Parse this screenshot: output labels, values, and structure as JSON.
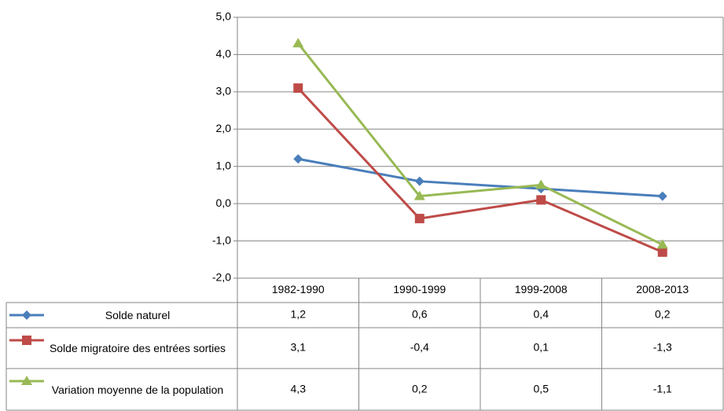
{
  "chart_data": {
    "type": "line",
    "categories": [
      "1982-1990",
      "1990-1999",
      "1999-2008",
      "2008-2013"
    ],
    "series": [
      {
        "name": "Solde naturel",
        "color": "#4a7ebb",
        "marker": "diamond",
        "values": [
          1.2,
          0.6,
          0.4,
          0.2
        ],
        "value_labels": [
          "1,2",
          "0,6",
          "0,4",
          "0,2"
        ]
      },
      {
        "name": "Solde migratoire des entrées sorties",
        "color": "#be4b48",
        "marker": "square",
        "values": [
          3.1,
          -0.4,
          0.1,
          -1.3
        ],
        "value_labels": [
          "3,1",
          "-0,4",
          "0,1",
          "-1,3"
        ]
      },
      {
        "name": "Variation moyenne de la population",
        "color": "#98b954",
        "marker": "triangle",
        "values": [
          4.3,
          0.2,
          0.5,
          -1.1
        ],
        "value_labels": [
          "4,3",
          "0,2",
          "0,5",
          "-1,1"
        ]
      }
    ],
    "ylim": [
      -2,
      5
    ],
    "yticks": [
      {
        "value": -2,
        "label": "-2,0"
      },
      {
        "value": -1,
        "label": "-1,0"
      },
      {
        "value": 0,
        "label": "0,0"
      },
      {
        "value": 1,
        "label": "1,0"
      },
      {
        "value": 2,
        "label": "2,0"
      },
      {
        "value": 3,
        "label": "3,0"
      },
      {
        "value": 4,
        "label": "4,0"
      },
      {
        "value": 5,
        "label": "5,0"
      }
    ],
    "grid": true
  }
}
